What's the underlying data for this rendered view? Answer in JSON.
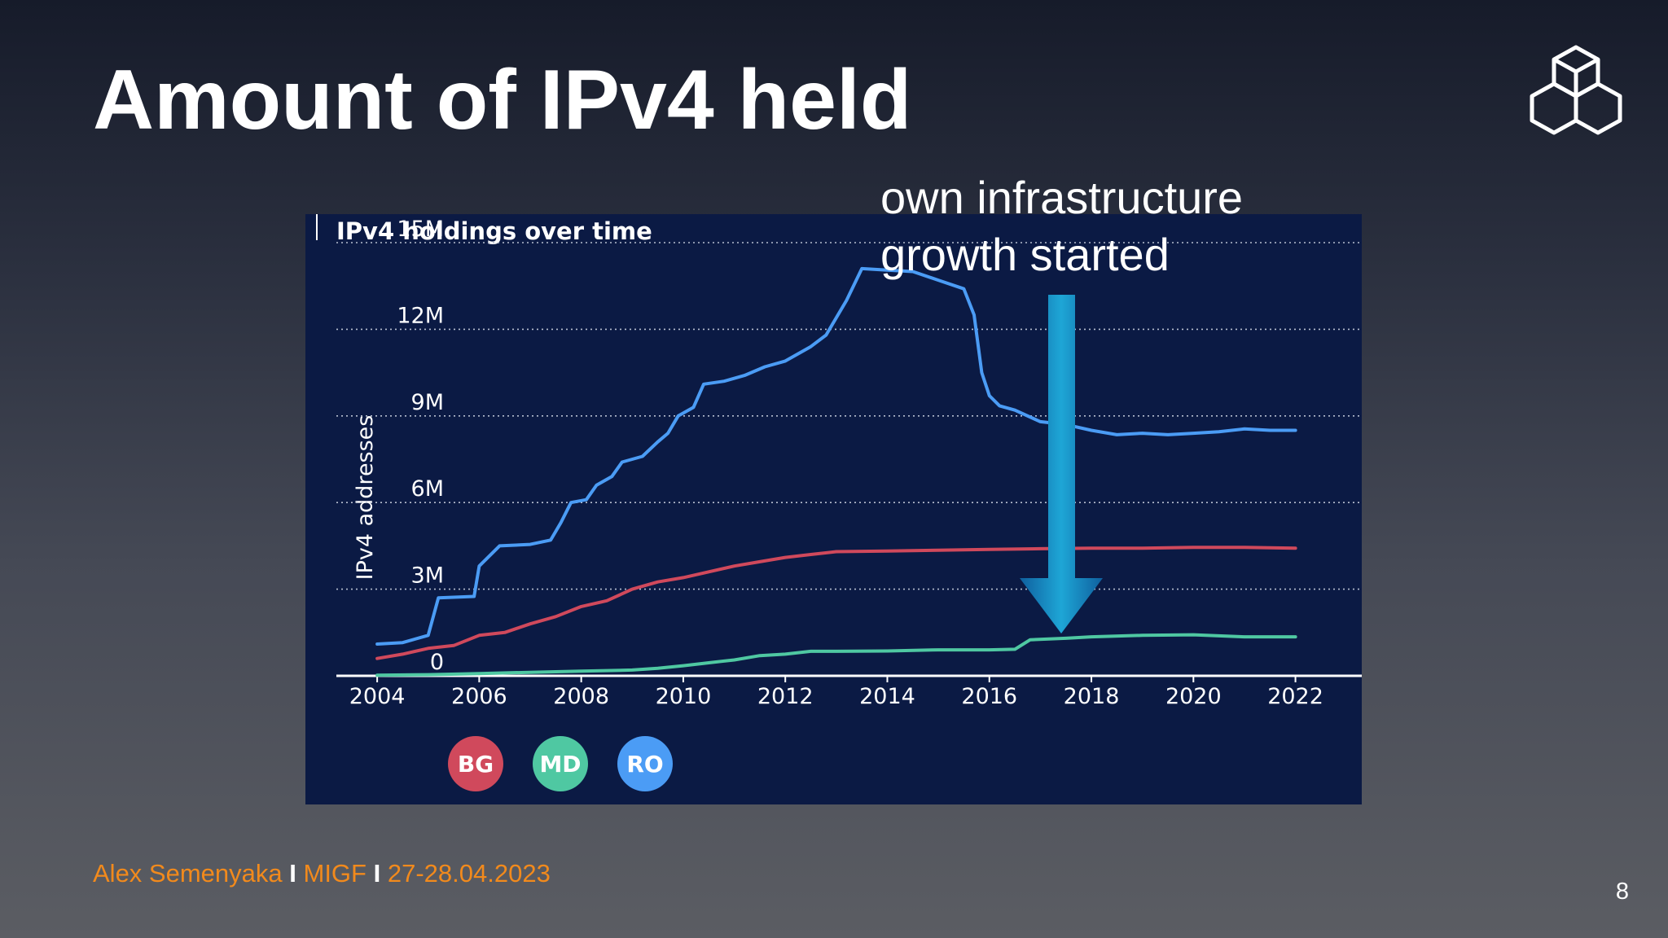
{
  "slide": {
    "title": "Amount of IPv4 held",
    "annotation_line1": "own infrastructure",
    "annotation_line2": "growth started",
    "footer": {
      "author": "Alex Semenyaka",
      "separator": "I",
      "event": "MIGF",
      "dates": "27-28.04.2023"
    },
    "page_number": "8",
    "logo_icon": "stacked-cubes-logo-icon",
    "arrow_icon": "down-arrow-icon"
  },
  "chart_data": {
    "type": "line",
    "title": "IPv4 holdings over time",
    "xlabel": "",
    "ylabel": "IPv4 addresses",
    "xlim": [
      2003.2,
      2023.3
    ],
    "ylim": [
      0,
      15000000
    ],
    "x_ticks": [
      "2004",
      "2006",
      "2008",
      "2010",
      "2012",
      "2014",
      "2016",
      "2018",
      "2020",
      "2022"
    ],
    "y_ticks": [
      "0",
      "3M",
      "6M",
      "9M",
      "12M",
      "15M"
    ],
    "grid": "horizontal dotted",
    "legend_position": "bottom-left",
    "series": [
      {
        "name": "BG",
        "color": "#d0495c",
        "points": [
          [
            2004.0,
            0.6
          ],
          [
            2004.5,
            0.75
          ],
          [
            2005.0,
            0.95
          ],
          [
            2005.5,
            1.05
          ],
          [
            2006.0,
            1.4
          ],
          [
            2006.5,
            1.5
          ],
          [
            2007.0,
            1.8
          ],
          [
            2007.5,
            2.05
          ],
          [
            2008.0,
            2.4
          ],
          [
            2008.5,
            2.6
          ],
          [
            2009.0,
            3.0
          ],
          [
            2009.5,
            3.25
          ],
          [
            2010.0,
            3.4
          ],
          [
            2010.5,
            3.6
          ],
          [
            2011.0,
            3.8
          ],
          [
            2011.5,
            3.95
          ],
          [
            2012.0,
            4.1
          ],
          [
            2012.5,
            4.2
          ],
          [
            2013.0,
            4.3
          ],
          [
            2014.0,
            4.32
          ],
          [
            2015.0,
            4.35
          ],
          [
            2016.0,
            4.38
          ],
          [
            2017.0,
            4.4
          ],
          [
            2018.0,
            4.42
          ],
          [
            2019.0,
            4.42
          ],
          [
            2020.0,
            4.45
          ],
          [
            2021.0,
            4.45
          ],
          [
            2022.0,
            4.42
          ]
        ]
      },
      {
        "name": "MD",
        "color": "#4fc8a2",
        "points": [
          [
            2004.0,
            0.02
          ],
          [
            2005.0,
            0.04
          ],
          [
            2006.0,
            0.08
          ],
          [
            2007.0,
            0.12
          ],
          [
            2008.0,
            0.16
          ],
          [
            2009.0,
            0.2
          ],
          [
            2009.5,
            0.26
          ],
          [
            2010.0,
            0.35
          ],
          [
            2010.5,
            0.45
          ],
          [
            2011.0,
            0.55
          ],
          [
            2011.5,
            0.7
          ],
          [
            2012.0,
            0.75
          ],
          [
            2012.5,
            0.85
          ],
          [
            2013.0,
            0.85
          ],
          [
            2014.0,
            0.86
          ],
          [
            2015.0,
            0.9
          ],
          [
            2016.0,
            0.9
          ],
          [
            2016.5,
            0.92
          ],
          [
            2016.8,
            1.25
          ],
          [
            2017.5,
            1.3
          ],
          [
            2018.0,
            1.35
          ],
          [
            2019.0,
            1.4
          ],
          [
            2020.0,
            1.42
          ],
          [
            2021.0,
            1.35
          ],
          [
            2022.0,
            1.35
          ]
        ]
      },
      {
        "name": "RO",
        "color": "#4b9cf5",
        "points": [
          [
            2004.0,
            1.1
          ],
          [
            2004.5,
            1.15
          ],
          [
            2005.0,
            1.4
          ],
          [
            2005.2,
            2.7
          ],
          [
            2005.9,
            2.75
          ],
          [
            2006.0,
            3.8
          ],
          [
            2006.4,
            4.5
          ],
          [
            2007.0,
            4.55
          ],
          [
            2007.4,
            4.7
          ],
          [
            2007.6,
            5.3
          ],
          [
            2007.8,
            6.0
          ],
          [
            2008.1,
            6.1
          ],
          [
            2008.3,
            6.6
          ],
          [
            2008.6,
            6.9
          ],
          [
            2008.8,
            7.4
          ],
          [
            2009.2,
            7.6
          ],
          [
            2009.5,
            8.1
          ],
          [
            2009.7,
            8.4
          ],
          [
            2009.9,
            9.0
          ],
          [
            2010.2,
            9.3
          ],
          [
            2010.4,
            10.1
          ],
          [
            2010.8,
            10.2
          ],
          [
            2011.2,
            10.4
          ],
          [
            2011.6,
            10.7
          ],
          [
            2012.0,
            10.9
          ],
          [
            2012.5,
            11.4
          ],
          [
            2012.8,
            11.8
          ],
          [
            2013.0,
            12.4
          ],
          [
            2013.2,
            13.0
          ],
          [
            2013.5,
            14.1
          ],
          [
            2014.0,
            14.05
          ],
          [
            2014.5,
            14.0
          ],
          [
            2015.0,
            13.7
          ],
          [
            2015.5,
            13.4
          ],
          [
            2015.7,
            12.5
          ],
          [
            2015.85,
            10.5
          ],
          [
            2016.0,
            9.7
          ],
          [
            2016.2,
            9.35
          ],
          [
            2016.5,
            9.2
          ],
          [
            2017.0,
            8.8
          ],
          [
            2017.5,
            8.7
          ],
          [
            2018.0,
            8.5
          ],
          [
            2018.5,
            8.35
          ],
          [
            2019.0,
            8.4
          ],
          [
            2019.5,
            8.35
          ],
          [
            2020.0,
            8.4
          ],
          [
            2020.5,
            8.45
          ],
          [
            2021.0,
            8.55
          ],
          [
            2021.5,
            8.5
          ],
          [
            2022.0,
            8.5
          ]
        ]
      }
    ]
  }
}
